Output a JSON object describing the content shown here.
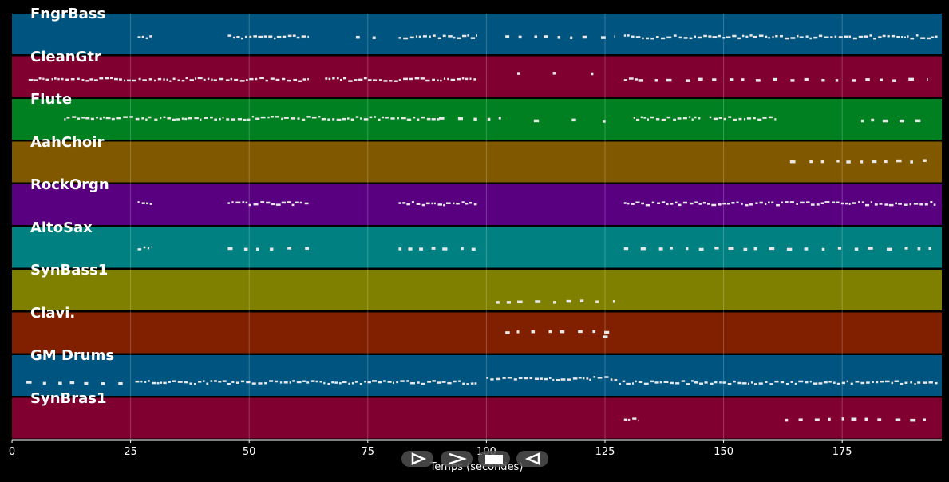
{
  "chart_data": {
    "type": "piano-roll",
    "xlabel": "Temps (secondes)",
    "xlim": [
      0,
      196
    ],
    "xticks": [
      0,
      25,
      50,
      75,
      100,
      125,
      150,
      175
    ],
    "grid": true,
    "tracks": [
      {
        "name": "FngrBass",
        "color": "#005480",
        "segments": [
          {
            "start": 26.5,
            "end": 29.5,
            "pitch": 0.55,
            "style": "dense"
          },
          {
            "start": 45.5,
            "end": 62.5,
            "pitch": 0.55,
            "style": "dense"
          },
          {
            "start": 72.5,
            "end": 73.5,
            "pitch": 0.55,
            "style": "notes"
          },
          {
            "start": 76,
            "end": 77,
            "pitch": 0.55,
            "style": "notes"
          },
          {
            "start": 81.5,
            "end": 98,
            "pitch": 0.55,
            "style": "dense"
          },
          {
            "start": 104,
            "end": 127,
            "pitch": 0.55,
            "style": "notes"
          },
          {
            "start": 129,
            "end": 195,
            "pitch": 0.55,
            "style": "dense"
          }
        ]
      },
      {
        "name": "CleanGtr",
        "color": "#800030",
        "segments": [
          {
            "start": 3.5,
            "end": 62.5,
            "pitch": 0.55,
            "style": "dense"
          },
          {
            "start": 66,
            "end": 98,
            "pitch": 0.55,
            "style": "dense"
          },
          {
            "start": 106.5,
            "end": 107,
            "pitch": 0.4,
            "style": "notes"
          },
          {
            "start": 114,
            "end": 114.5,
            "pitch": 0.4,
            "style": "notes"
          },
          {
            "start": 122,
            "end": 122.5,
            "pitch": 0.4,
            "style": "notes"
          },
          {
            "start": 129,
            "end": 132,
            "pitch": 0.55,
            "style": "dense"
          },
          {
            "start": 132,
            "end": 193,
            "pitch": 0.55,
            "style": "notes"
          }
        ]
      },
      {
        "name": "Flute",
        "color": "#008020",
        "segments": [
          {
            "start": 11,
            "end": 29.5,
            "pitch": 0.45,
            "style": "dense"
          },
          {
            "start": 30,
            "end": 90,
            "pitch": 0.45,
            "style": "dense"
          },
          {
            "start": 90,
            "end": 103,
            "pitch": 0.45,
            "style": "notes"
          },
          {
            "start": 110,
            "end": 112,
            "pitch": 0.5,
            "style": "notes"
          },
          {
            "start": 118,
            "end": 119.5,
            "pitch": 0.5,
            "style": "notes"
          },
          {
            "start": 124.5,
            "end": 126,
            "pitch": 0.5,
            "style": "notes"
          },
          {
            "start": 131,
            "end": 145,
            "pitch": 0.45,
            "style": "dense"
          },
          {
            "start": 147,
            "end": 161,
            "pitch": 0.45,
            "style": "dense"
          },
          {
            "start": 179,
            "end": 193,
            "pitch": 0.5,
            "style": "notes"
          }
        ]
      },
      {
        "name": "AahChoir",
        "color": "#805800",
        "segments": [
          {
            "start": 164,
            "end": 193,
            "pitch": 0.45,
            "style": "notes"
          }
        ]
      },
      {
        "name": "RockOrgn",
        "color": "#580080",
        "segments": [
          {
            "start": 26.5,
            "end": 29.5,
            "pitch": 0.45,
            "style": "dense"
          },
          {
            "start": 45.5,
            "end": 62.5,
            "pitch": 0.45,
            "style": "dense"
          },
          {
            "start": 81.5,
            "end": 98,
            "pitch": 0.45,
            "style": "dense"
          },
          {
            "start": 129,
            "end": 195,
            "pitch": 0.45,
            "style": "dense"
          }
        ]
      },
      {
        "name": "AltoSax",
        "color": "#008080",
        "segments": [
          {
            "start": 26.5,
            "end": 29.5,
            "pitch": 0.5,
            "style": "dense"
          },
          {
            "start": 45.5,
            "end": 62.5,
            "pitch": 0.5,
            "style": "notes"
          },
          {
            "start": 81.5,
            "end": 98,
            "pitch": 0.5,
            "style": "notes"
          },
          {
            "start": 129,
            "end": 195,
            "pitch": 0.5,
            "style": "notes"
          }
        ]
      },
      {
        "name": "SynBass1",
        "color": "#808000",
        "segments": [
          {
            "start": 102,
            "end": 127,
            "pitch": 0.75,
            "style": "notes"
          }
        ]
      },
      {
        "name": "Clavi.",
        "color": "#802000",
        "segments": [
          {
            "start": 104,
            "end": 128,
            "pitch": 0.45,
            "style": "notes"
          },
          {
            "start": 124.5,
            "end": 125.5,
            "pitch": 0.58,
            "style": "notes"
          }
        ]
      },
      {
        "name": "GM Drums",
        "color": "#005480",
        "segments": [
          {
            "start": 3,
            "end": 26,
            "pitch": 0.65,
            "style": "notes"
          },
          {
            "start": 26,
            "end": 98,
            "pitch": 0.65,
            "style": "dense"
          },
          {
            "start": 100,
            "end": 128,
            "pitch": 0.55,
            "style": "dense"
          },
          {
            "start": 128,
            "end": 195,
            "pitch": 0.65,
            "style": "dense"
          }
        ]
      },
      {
        "name": "SynBras1",
        "color": "#800030",
        "segments": [
          {
            "start": 129,
            "end": 132,
            "pitch": 0.5,
            "style": "dense"
          },
          {
            "start": 163,
            "end": 193.5,
            "pitch": 0.5,
            "style": "notes"
          }
        ]
      }
    ]
  },
  "controls": [
    {
      "name": "play-icon"
    },
    {
      "name": "fast-forward-icon"
    },
    {
      "name": "stop-icon"
    },
    {
      "name": "rewind-icon"
    }
  ]
}
